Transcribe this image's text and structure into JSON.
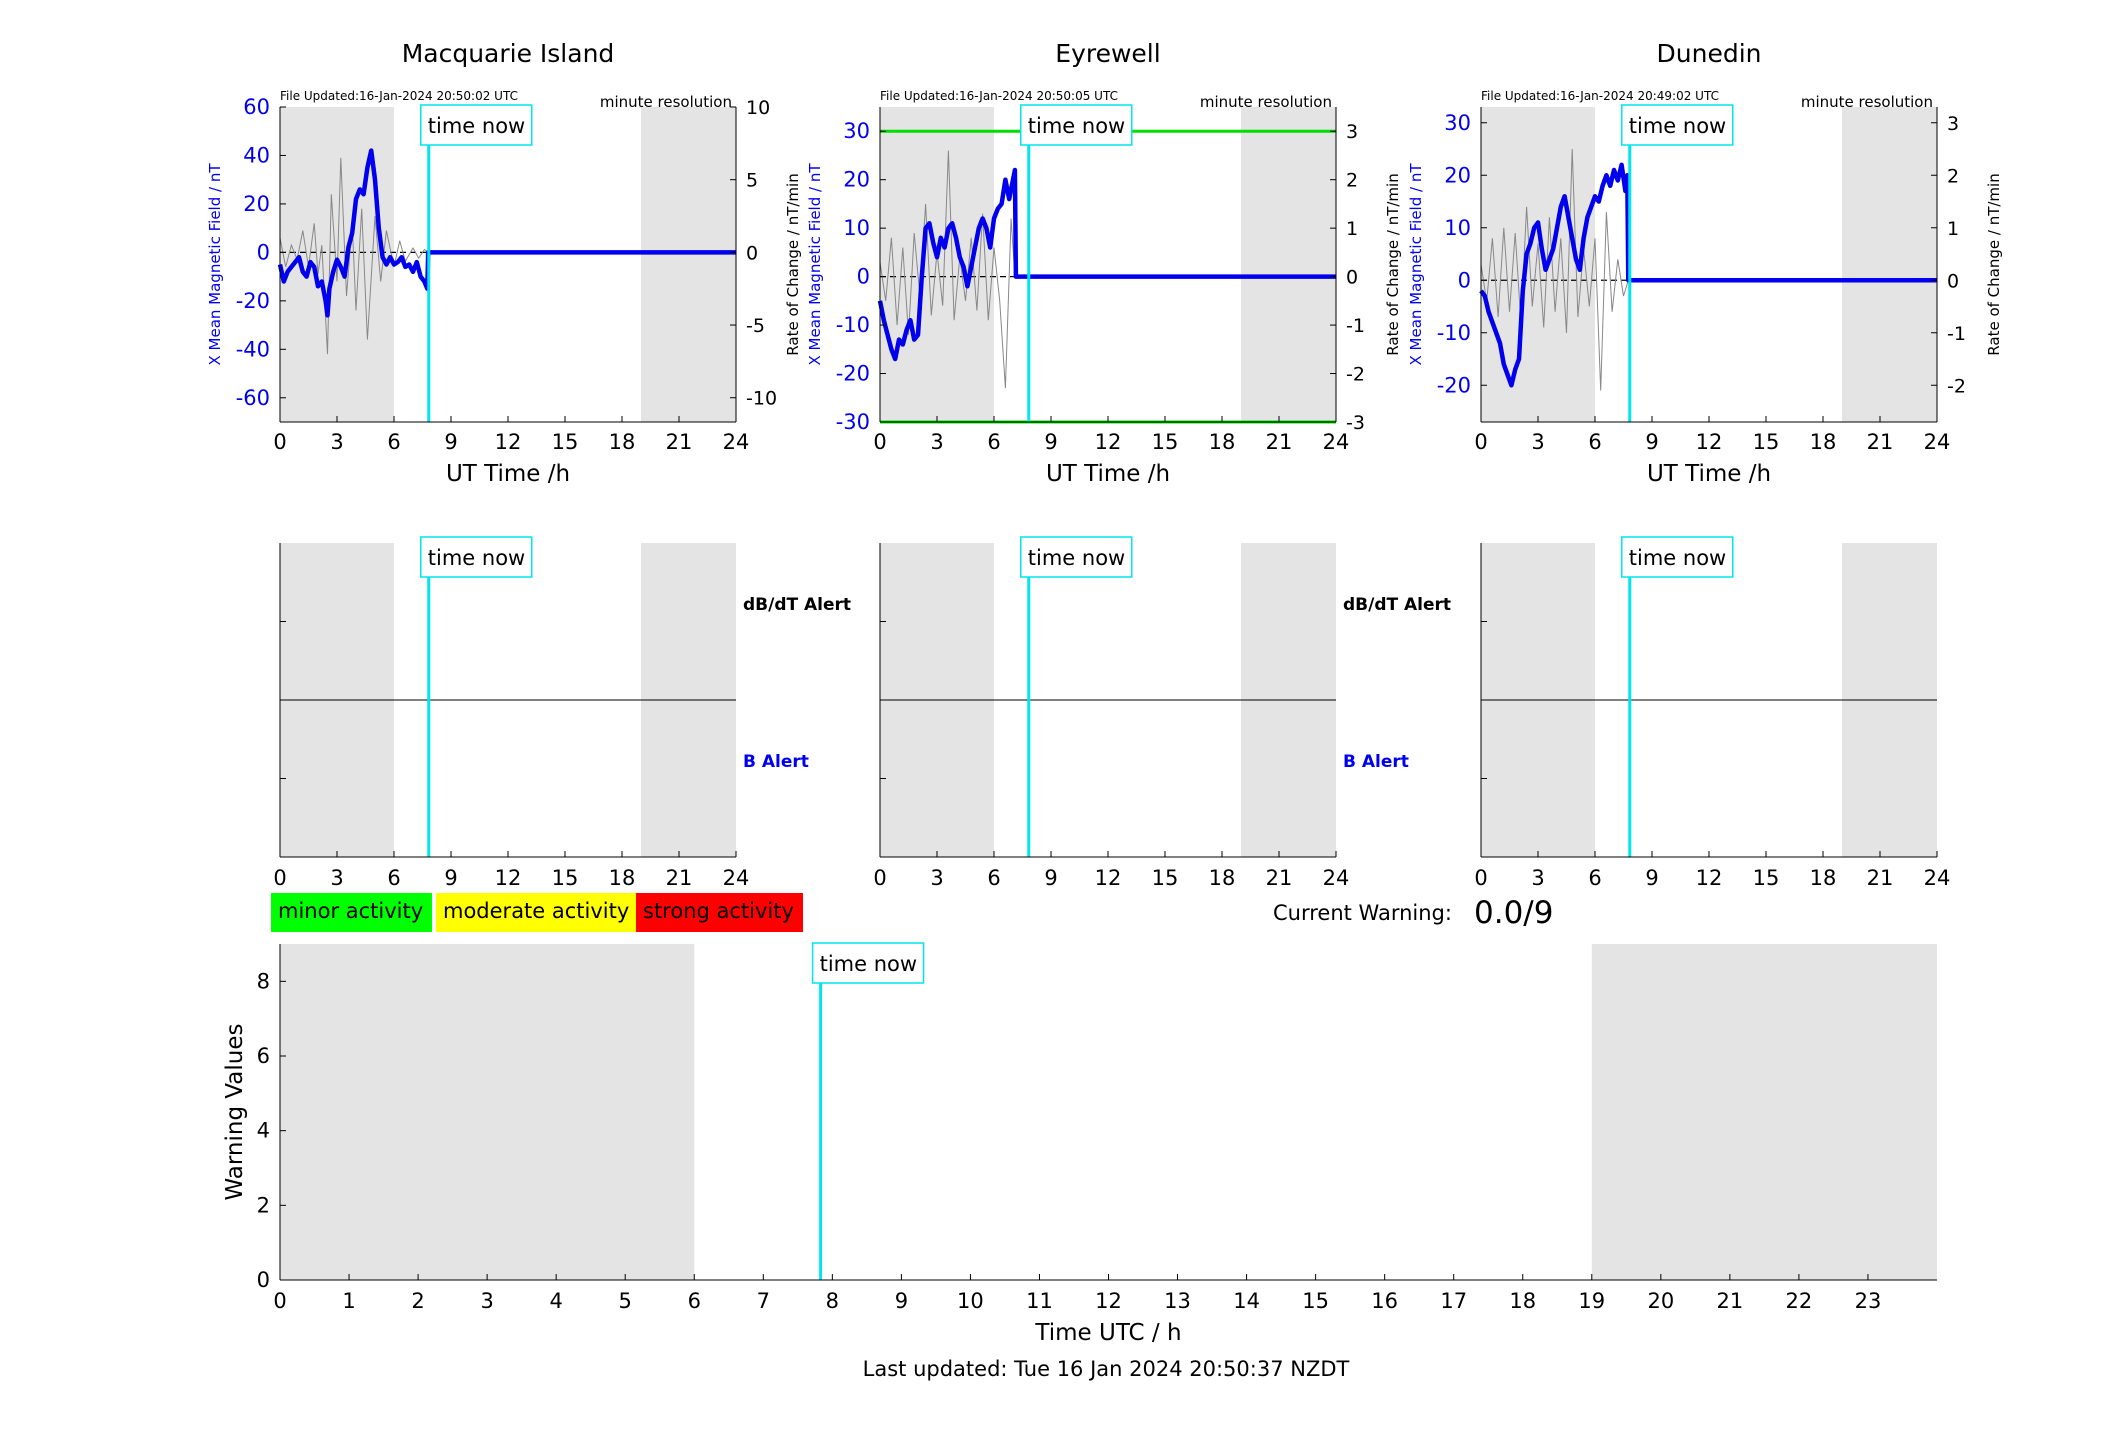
{
  "colors": {
    "b_field": "#0000ee",
    "rate": "#888888",
    "time_now": "#00e5ee",
    "night": "#e4e4e4",
    "threshold": "#00dd00",
    "minor": "#00ff00",
    "moderate": "#ffff00",
    "strong": "#ff0000"
  },
  "time_now_label": "time now",
  "station_axis": {
    "xlabel": "UT Time /h",
    "xticks": [
      0,
      3,
      6,
      9,
      12,
      15,
      18,
      21,
      24
    ],
    "xlim": [
      0,
      24
    ],
    "ylabel_left": "X Mean Magnetic Field / nT",
    "ylabel_right": "Rate of Change / nT/min",
    "resolution_label": "minute resolution"
  },
  "alert_labels": {
    "dbdt": "dB/dT Alert",
    "b": "B Alert"
  },
  "legend": {
    "minor": "minor activity",
    "moderate": "moderate activity",
    "strong": "strong activity"
  },
  "current_warning": {
    "label": "Current Warning:",
    "value": "0.0/9"
  },
  "footer": {
    "last_updated": "Last updated: Tue 16 Jan 2024 20:50:37 NZDT"
  },
  "chart_data": [
    {
      "type": "line",
      "title": "Macquarie Island",
      "file_updated": "File Updated:16-Jan-2024 20:50:02 UTC",
      "xlabel": "UT Time /h",
      "ylabel": "X Mean Magnetic Field / nT",
      "ylabel_right": "Rate of Change / nT/min",
      "xlim": [
        0,
        24
      ],
      "ylim": [
        -70,
        60
      ],
      "yticks": [
        -60,
        -40,
        -20,
        0,
        20,
        40,
        60
      ],
      "ylim_right": [
        -11.67,
        10
      ],
      "yticks_right": [
        -10,
        -5,
        0,
        5,
        10
      ],
      "night": [
        [
          0,
          6
        ],
        [
          19,
          24
        ]
      ],
      "time_now": 7.83,
      "series": [
        {
          "values_role": "mean_field",
          "x": [
            0,
            0.2,
            0.4,
            0.6,
            0.8,
            1.0,
            1.2,
            1.4,
            1.6,
            1.8,
            2.0,
            2.2,
            2.4,
            2.5,
            2.6,
            2.8,
            3.0,
            3.2,
            3.4,
            3.6,
            3.8,
            4.0,
            4.2,
            4.4,
            4.6,
            4.8,
            5.0,
            5.2,
            5.4,
            5.6,
            5.8,
            6.0,
            6.2,
            6.4,
            6.6,
            6.8,
            7.0,
            7.2,
            7.4,
            7.6,
            7.75,
            7.8,
            24
          ],
          "y": [
            -5,
            -12,
            -8,
            -6,
            -4,
            -2,
            -8,
            -10,
            -4,
            -6,
            -14,
            -12,
            -20,
            -26,
            -15,
            -8,
            -3,
            -6,
            -10,
            2,
            8,
            22,
            26,
            24,
            35,
            42,
            30,
            10,
            -2,
            -5,
            -2,
            -5,
            -4,
            -2,
            -6,
            -5,
            -8,
            -4,
            -10,
            -12,
            -15,
            0,
            0
          ]
        },
        {
          "values_role": "rate_of_change",
          "x": [
            0,
            0.3,
            0.6,
            0.9,
            1.2,
            1.5,
            1.8,
            2.0,
            2.2,
            2.5,
            2.7,
            3.0,
            3.2,
            3.5,
            3.8,
            4.0,
            4.3,
            4.6,
            5.0,
            5.3,
            5.6,
            6.0,
            6.3,
            6.6,
            7.0,
            7.3,
            7.6,
            7.8
          ],
          "y": [
            1,
            -1,
            0.5,
            -0.5,
            1.5,
            -1,
            2,
            -1.5,
            0.5,
            -7,
            4,
            -2,
            6.5,
            -3,
            2,
            -4,
            3,
            -6,
            2.5,
            -2,
            1.5,
            -1,
            0.8,
            -0.6,
            0.3,
            -0.4,
            0.2,
            0
          ]
        }
      ]
    },
    {
      "type": "line",
      "title": "Eyrewell",
      "file_updated": "File Updated:16-Jan-2024 20:50:05 UTC",
      "xlabel": "UT Time /h",
      "ylabel": "X Mean Magnetic Field / nT",
      "ylabel_right": "Rate of Change / nT/min",
      "xlim": [
        0,
        24
      ],
      "ylim": [
        -30,
        35
      ],
      "yticks": [
        -30,
        -20,
        -10,
        0,
        10,
        20,
        30
      ],
      "ylim_right": [
        -3,
        3.5
      ],
      "yticks_right": [
        -3,
        -2,
        -1,
        0,
        1,
        2,
        3
      ],
      "night": [
        [
          0,
          6
        ],
        [
          19,
          24
        ]
      ],
      "threshold_lines": [
        30,
        -30
      ],
      "time_now": 7.83,
      "series": [
        {
          "values_role": "mean_field",
          "x": [
            0,
            0.2,
            0.4,
            0.6,
            0.8,
            1.0,
            1.2,
            1.4,
            1.6,
            1.8,
            2.0,
            2.2,
            2.4,
            2.6,
            2.8,
            3.0,
            3.2,
            3.4,
            3.6,
            3.8,
            4.0,
            4.2,
            4.4,
            4.6,
            4.8,
            5.0,
            5.2,
            5.4,
            5.6,
            5.8,
            6.0,
            6.2,
            6.4,
            6.6,
            6.8,
            7.0,
            7.1,
            7.15,
            24
          ],
          "y": [
            -5,
            -9,
            -12,
            -15,
            -17,
            -13,
            -14,
            -11,
            -9,
            -13,
            -12,
            0,
            10,
            11,
            7,
            4,
            8,
            6,
            10,
            11,
            8,
            4,
            2,
            -2,
            2,
            6,
            10,
            12,
            10,
            6,
            12,
            14,
            15,
            20,
            16,
            20,
            22,
            0,
            0
          ]
        },
        {
          "values_role": "rate_of_change",
          "x": [
            0,
            0.3,
            0.6,
            0.9,
            1.2,
            1.5,
            1.8,
            2.1,
            2.4,
            2.7,
            3.0,
            3.3,
            3.6,
            3.9,
            4.2,
            4.5,
            4.8,
            5.1,
            5.4,
            5.7,
            6.0,
            6.3,
            6.6,
            6.9,
            7.1
          ],
          "y": [
            0.3,
            -0.5,
            0.8,
            -1,
            0.6,
            -1.2,
            0.9,
            -0.4,
            1.5,
            -0.8,
            0.5,
            -0.6,
            2.6,
            -0.9,
            0.4,
            -0.5,
            0.8,
            -0.7,
            1.3,
            -0.9,
            0.6,
            -0.5,
            -2.3,
            1.2,
            0
          ]
        }
      ]
    },
    {
      "type": "line",
      "title": "Dunedin",
      "file_updated": "File Updated:16-Jan-2024 20:49:02 UTC",
      "xlabel": "UT Time /h",
      "ylabel": "X Mean Magnetic Field / nT",
      "ylabel_right": "Rate of Change / nT/min",
      "xlim": [
        0,
        24
      ],
      "ylim": [
        -27,
        33
      ],
      "yticks": [
        -20,
        -10,
        0,
        10,
        20,
        30
      ],
      "ylim_right": [
        -2.7,
        3.3
      ],
      "yticks_right": [
        -2,
        -1,
        0,
        1,
        2,
        3
      ],
      "night": [
        [
          0,
          6
        ],
        [
          19,
          24
        ]
      ],
      "time_now": 7.83,
      "series": [
        {
          "values_role": "mean_field",
          "x": [
            0,
            0.2,
            0.4,
            0.6,
            0.8,
            1.0,
            1.2,
            1.4,
            1.6,
            1.8,
            2.0,
            2.2,
            2.4,
            2.6,
            2.8,
            3.0,
            3.2,
            3.4,
            3.6,
            3.8,
            4.0,
            4.2,
            4.4,
            4.6,
            4.8,
            5.0,
            5.2,
            5.4,
            5.6,
            5.8,
            6.0,
            6.2,
            6.4,
            6.6,
            6.8,
            7.0,
            7.2,
            7.4,
            7.6,
            7.7,
            7.75,
            24
          ],
          "y": [
            -2,
            -3,
            -6,
            -8,
            -10,
            -12,
            -16,
            -18,
            -20,
            -17,
            -15,
            -2,
            5,
            7,
            10,
            11,
            6,
            2,
            4,
            6,
            10,
            14,
            16,
            12,
            8,
            4,
            2,
            8,
            12,
            14,
            16,
            15,
            18,
            20,
            18,
            21,
            19,
            22,
            17,
            20,
            0,
            0
          ]
        },
        {
          "values_role": "rate_of_change",
          "x": [
            0,
            0.3,
            0.6,
            0.9,
            1.2,
            1.5,
            1.8,
            2.1,
            2.4,
            2.7,
            3.0,
            3.3,
            3.6,
            3.9,
            4.2,
            4.5,
            4.8,
            5.1,
            5.4,
            5.7,
            6.0,
            6.3,
            6.6,
            6.9,
            7.2,
            7.5,
            7.75
          ],
          "y": [
            0.3,
            -0.4,
            0.8,
            -0.7,
            1.0,
            -0.6,
            0.9,
            -0.8,
            1.4,
            -0.5,
            0.7,
            -0.9,
            1.2,
            -0.6,
            0.8,
            -1.0,
            2.5,
            -0.7,
            0.6,
            -0.5,
            0.8,
            -2.1,
            1.3,
            -0.6,
            0.4,
            -0.3,
            0
          ]
        }
      ]
    },
    {
      "type": "line",
      "title": "",
      "xlabel": "Time UTC / h",
      "ylabel": "Warning Values",
      "xlim": [
        0,
        24
      ],
      "xticks": [
        0,
        1,
        2,
        3,
        4,
        5,
        6,
        7,
        8,
        9,
        10,
        11,
        12,
        13,
        14,
        15,
        16,
        17,
        18,
        19,
        20,
        21,
        22,
        23
      ],
      "ylim": [
        0,
        9
      ],
      "yticks": [
        0,
        2,
        4,
        6,
        8
      ],
      "night": [
        [
          0,
          6
        ],
        [
          19,
          24
        ]
      ],
      "time_now": 7.83,
      "series": []
    }
  ]
}
